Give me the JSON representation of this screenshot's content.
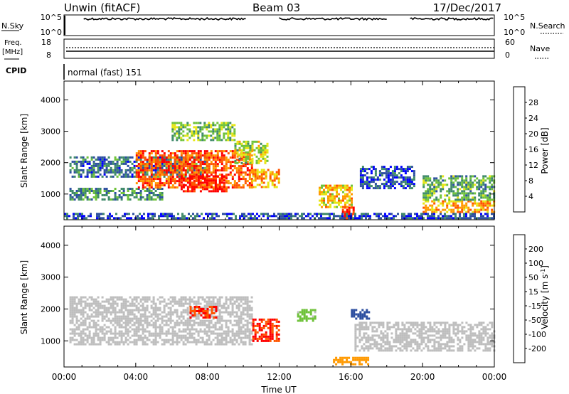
{
  "header": {
    "station_title": "Unwin (fitACF)",
    "beam": "Beam 03",
    "date": "17/Dec/2017"
  },
  "top_panels": {
    "nsky_label": "N.Sky",
    "nsky_ticks_left": [
      "10^5",
      "10^0"
    ],
    "nsky_ticks_right": [
      "10^5",
      "10^0"
    ],
    "nsearch_label": "N.Search",
    "freq_label_line1": "Freq.",
    "freq_label_line2": "[MHz]",
    "freq_ticks": [
      "18",
      "8"
    ],
    "nave_ticks": [
      "60",
      "0"
    ],
    "nave_label": "Nave",
    "cpid_label": "CPID",
    "cpid_text": "normal (fast) 151"
  },
  "chart_data": [
    {
      "type": "heatmap",
      "panel": "power",
      "xlabel": "",
      "ylabel": "Slant Range [km]",
      "x_range_hours": [
        0,
        24
      ],
      "ylim": [
        180,
        4600
      ],
      "yticks": [
        1000,
        2000,
        3000,
        4000
      ],
      "colorbar": {
        "label": "Power [dB]",
        "ticks": [
          "4",
          "8",
          "12",
          "16",
          "20",
          "24",
          "28"
        ],
        "colors": [
          "#0000ff",
          "#2d4fa0",
          "#3f8a6a",
          "#6fc23a",
          "#e6e614",
          "#ff9900",
          "#ff5500",
          "#ff0000"
        ],
        "range": [
          0,
          32
        ]
      },
      "regions": [
        {
          "t": [
            0.3,
            8.0
          ],
          "r": [
            1550,
            2200
          ],
          "value": 8
        },
        {
          "t": [
            0.3,
            5.5
          ],
          "r": [
            850,
            1200
          ],
          "value": 10
        },
        {
          "t": [
            4.0,
            10.5
          ],
          "r": [
            1200,
            2400
          ],
          "value": 26
        },
        {
          "t": [
            6.5,
            9.0
          ],
          "r": [
            1100,
            1600
          ],
          "value": 30
        },
        {
          "t": [
            9.5,
            11.3
          ],
          "r": [
            2000,
            2700
          ],
          "value": 16
        },
        {
          "t": [
            10.5,
            12.0
          ],
          "r": [
            1200,
            1800
          ],
          "value": 22
        },
        {
          "t": [
            6.0,
            9.5
          ],
          "r": [
            2700,
            3300
          ],
          "value": 14
        },
        {
          "t": [
            14.2,
            16.0
          ],
          "r": [
            600,
            1300
          ],
          "value": 20
        },
        {
          "t": [
            15.5,
            16.2
          ],
          "r": [
            200,
            600
          ],
          "value": 30
        },
        {
          "t": [
            16.5,
            19.5
          ],
          "r": [
            1200,
            1900
          ],
          "value": 6
        },
        {
          "t": [
            20.0,
            24.0
          ],
          "r": [
            400,
            800
          ],
          "value": 22
        },
        {
          "t": [
            20.0,
            24.0
          ],
          "r": [
            800,
            1600
          ],
          "value": 12
        },
        {
          "t": [
            0.0,
            24.0
          ],
          "r": [
            200,
            400
          ],
          "value": 6
        }
      ]
    },
    {
      "type": "heatmap",
      "panel": "velocity",
      "xlabel": "Time UT",
      "ylabel": "Slant Range [km]",
      "x_range_hours": [
        0,
        24
      ],
      "x_tick_labels": [
        "00:00",
        "04:00",
        "08:00",
        "12:00",
        "16:00",
        "20:00",
        "00:00"
      ],
      "ylim": [
        180,
        4600
      ],
      "yticks": [
        1000,
        2000,
        3000,
        4000
      ],
      "colorbar": {
        "label": "Velocity [m s^-1]",
        "ticks": [
          "200",
          "100",
          "50",
          "15",
          "-15",
          "-50",
          "-100",
          "-200"
        ],
        "colors": [
          "#0000ff",
          "#2d4fa0",
          "#3f8a6a",
          "#6fc23a",
          "#bebebe",
          "#ffd400",
          "#ff9900",
          "#ff5500",
          "#ff0000"
        ]
      },
      "regions": [
        {
          "t": [
            0.3,
            10.5
          ],
          "r": [
            900,
            2400
          ],
          "value": "ground"
        },
        {
          "t": [
            7.0,
            8.5
          ],
          "r": [
            1700,
            2100
          ],
          "value": -200
        },
        {
          "t": [
            10.5,
            12.0
          ],
          "r": [
            1000,
            1700
          ],
          "value": -200
        },
        {
          "t": [
            13.0,
            14.0
          ],
          "r": [
            1600,
            2000
          ],
          "value": 30
        },
        {
          "t": [
            16.0,
            17.0
          ],
          "r": [
            1700,
            2000
          ],
          "value": 150
        },
        {
          "t": [
            16.2,
            24.0
          ],
          "r": [
            700,
            1600
          ],
          "value": "ground"
        },
        {
          "t": [
            15.0,
            17.0
          ],
          "r": [
            250,
            500
          ],
          "value": -80
        }
      ]
    }
  ]
}
